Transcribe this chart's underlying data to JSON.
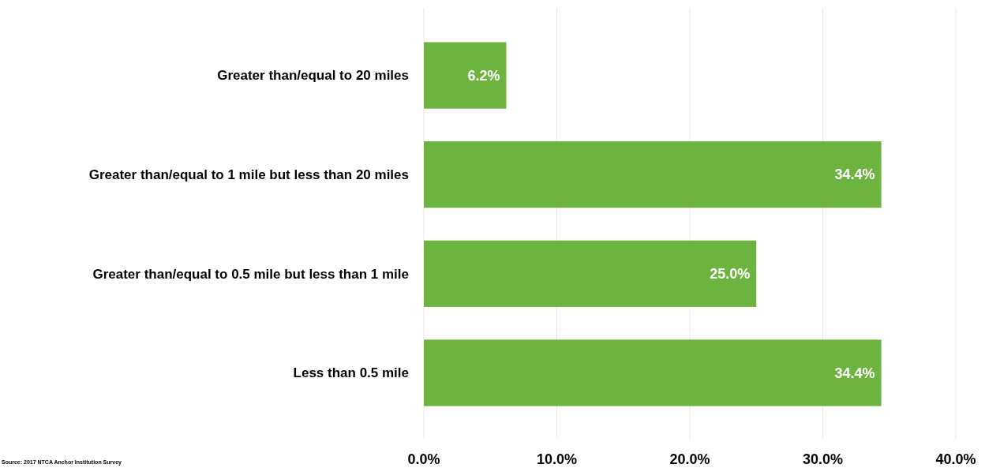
{
  "chart_data": {
    "type": "bar",
    "orientation": "horizontal",
    "categories": [
      "Greater than/equal to 20 miles",
      "Greater than/equal to 1 mile but less than 20 miles",
      "Greater than/equal to 0.5 mile but less than 1 mile",
      "Less than 0.5 mile"
    ],
    "values": [
      6.2,
      34.4,
      25.0,
      34.4
    ],
    "value_labels": [
      "6.2%",
      "34.4%",
      "25.0%",
      "34.4%"
    ],
    "color": "#6db33f",
    "xlim": [
      0,
      40
    ],
    "xticks": [
      {
        "value": 0,
        "label": "0.0%"
      },
      {
        "value": 10,
        "label": "10.0%"
      },
      {
        "value": 20,
        "label": "20.0%"
      },
      {
        "value": 30,
        "label": "30.0%"
      },
      {
        "value": 40,
        "label": "40.0%"
      }
    ],
    "grid": "x",
    "annotations": [
      "Source: 2017 NTCA Anchor Institution Survey"
    ]
  }
}
